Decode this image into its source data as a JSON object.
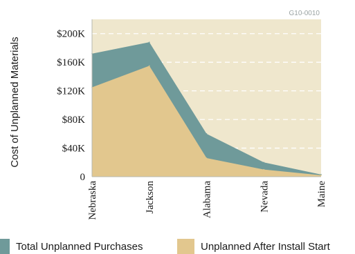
{
  "chart_data": {
    "type": "area",
    "id_label": "G10-0010",
    "ylabel": "Cost of Unplanned Materials",
    "xlabel": "",
    "categories": [
      "Nebraska",
      "Jackson",
      "Alabama",
      "Nevada",
      "Maine"
    ],
    "ylim": [
      0,
      220000
    ],
    "yticks": [
      0,
      40000,
      80000,
      120000,
      160000,
      200000
    ],
    "ytick_labels": [
      "0",
      "$40K",
      "$80K",
      "$120K",
      "$160K",
      "$200K"
    ],
    "grid": true,
    "legend_position": "bottom",
    "series": [
      {
        "name": "Total Unplanned Purchases",
        "color": "#6f9a9a",
        "values": [
          172000,
          188000,
          60000,
          20000,
          3000
        ]
      },
      {
        "name": "Unplanned After Install Start",
        "color": "#e2c78e",
        "values": [
          125000,
          155000,
          26000,
          10000,
          2000
        ]
      }
    ],
    "colors": {
      "plot_background": "#efe7cd",
      "grid_line": "#ffffff",
      "axis_line": "#b7b8b0"
    }
  }
}
